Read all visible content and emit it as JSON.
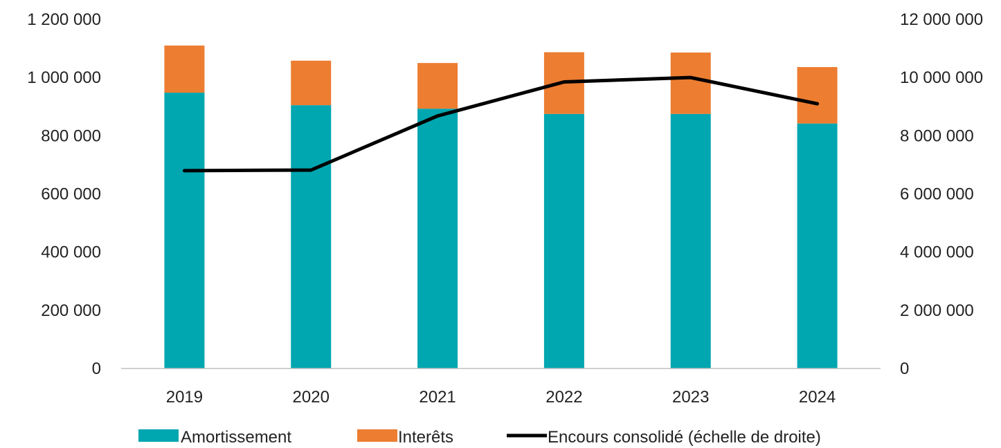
{
  "chart_data": {
    "type": "bar",
    "stacked": true,
    "categories": [
      "2019",
      "2020",
      "2021",
      "2022",
      "2023",
      "2024"
    ],
    "series": [
      {
        "name": "Amortissement",
        "type": "bar",
        "axis": "left",
        "color": "#00A6B0",
        "values": [
          948000,
          905000,
          893000,
          875000,
          875000,
          842000
        ]
      },
      {
        "name": "Interêts",
        "type": "bar",
        "axis": "left",
        "color": "#ED7D31",
        "values": [
          162000,
          153000,
          157000,
          212000,
          211000,
          194000
        ]
      },
      {
        "name": "Encours consolidé (échelle de droite)",
        "type": "line",
        "axis": "right",
        "color": "#000000",
        "values": [
          6800000,
          6820000,
          8680000,
          9850000,
          10000000,
          9100000
        ]
      }
    ],
    "y_left": {
      "ylim": [
        0,
        1200000
      ],
      "ticks": [
        0,
        200000,
        400000,
        600000,
        800000,
        1000000,
        1200000
      ],
      "tick_labels": [
        "0",
        "200 000",
        "400 000",
        "600 000",
        "800 000",
        "1 000 000",
        "1 200 000"
      ]
    },
    "y_right": {
      "ylim": [
        0,
        12000000
      ],
      "ticks": [
        0,
        2000000,
        4000000,
        6000000,
        8000000,
        10000000,
        12000000
      ],
      "tick_labels": [
        "0",
        "2 000 000",
        "4 000 000",
        "6 000 000",
        "8 000 000",
        "10 000 000",
        "12 000 000"
      ]
    },
    "grid": false,
    "legend_position": "bottom"
  }
}
